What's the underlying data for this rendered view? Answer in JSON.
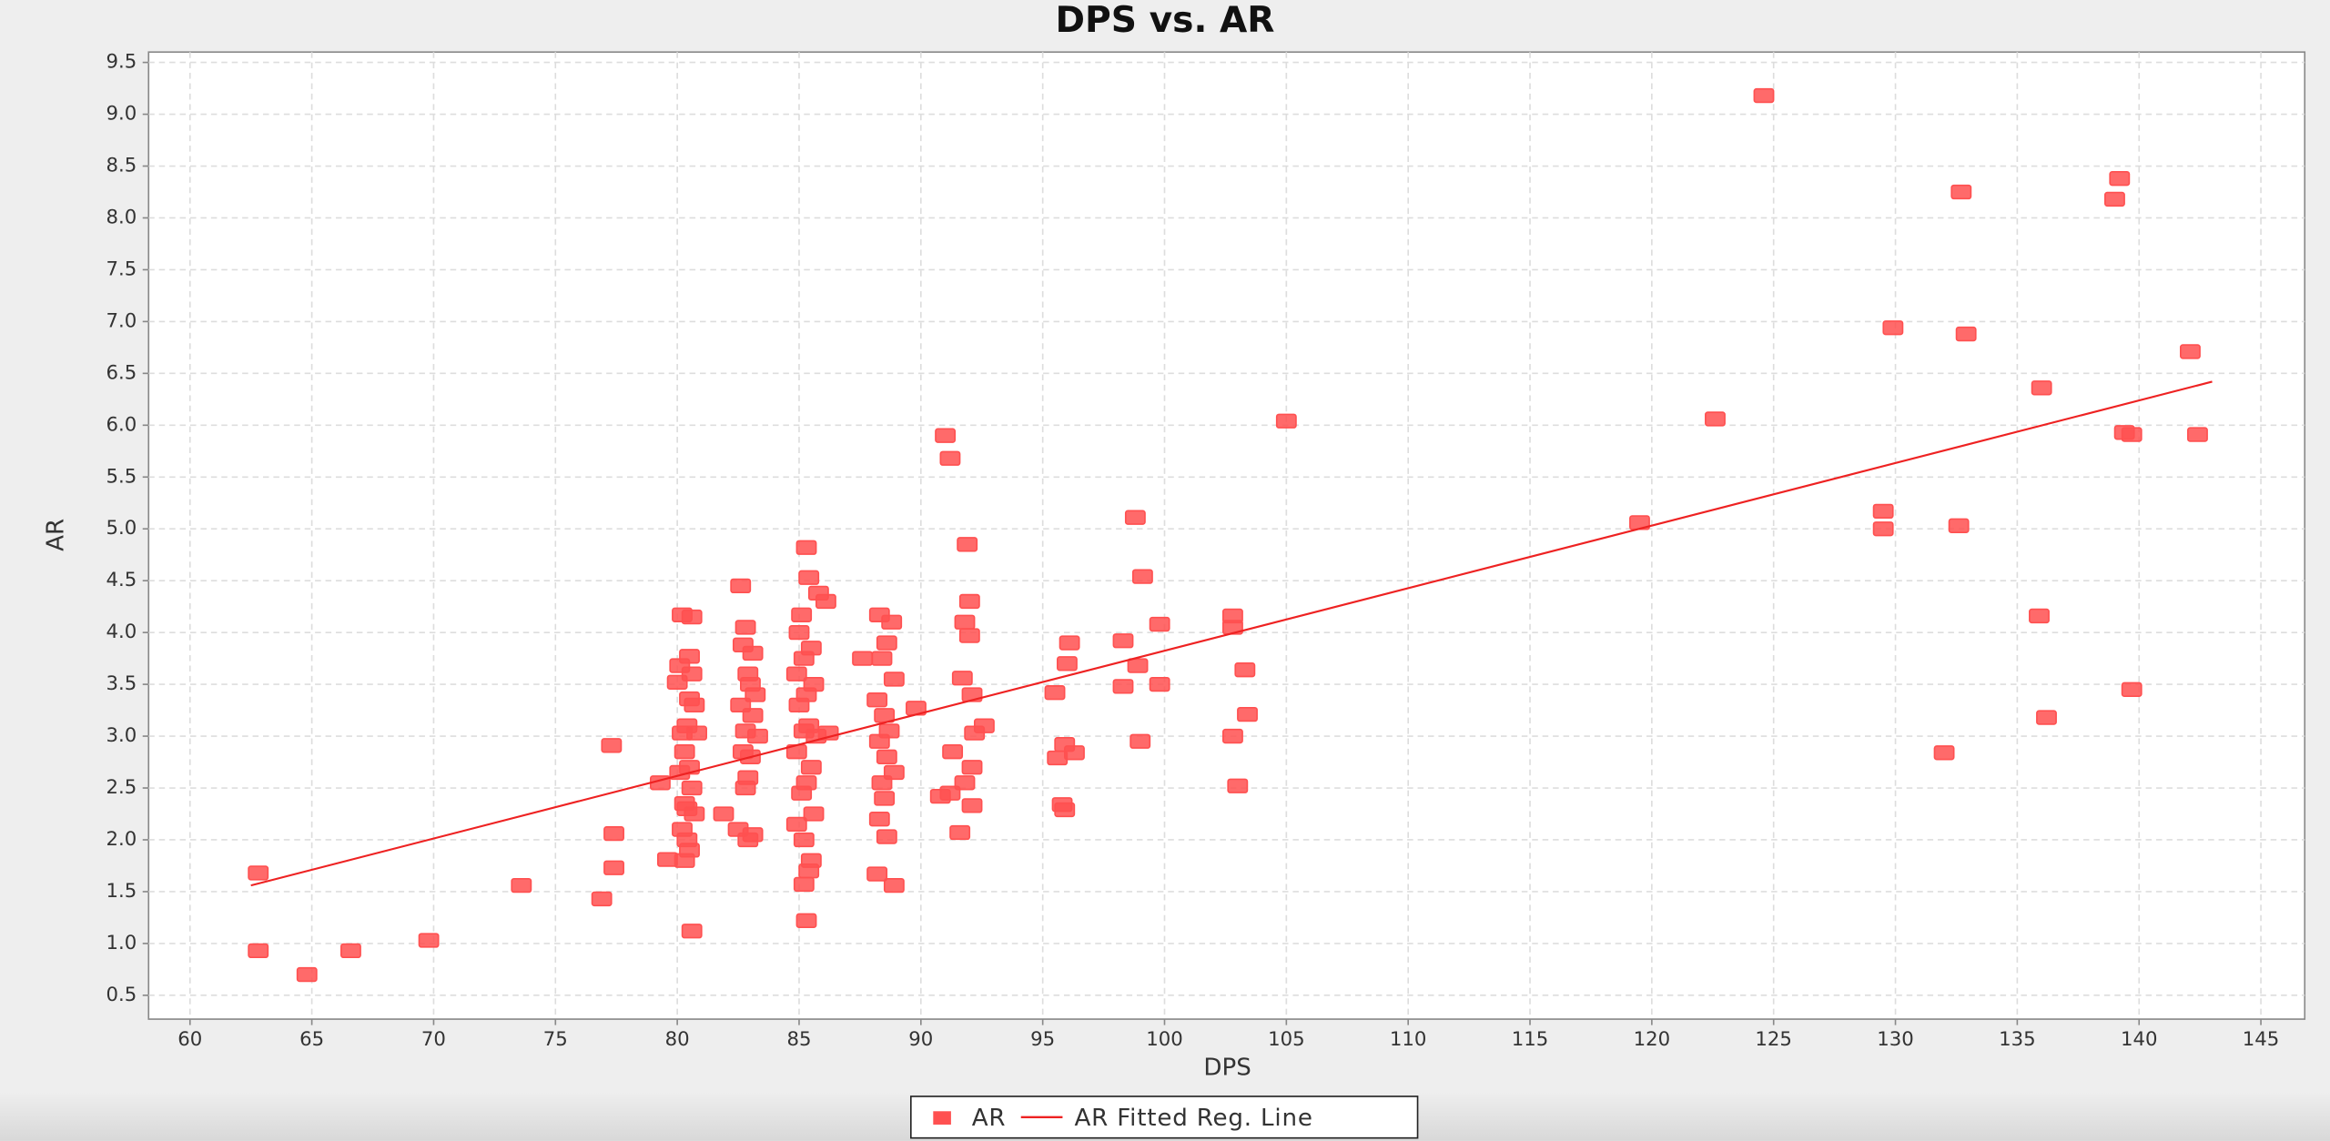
{
  "chart_data": {
    "type": "scatter",
    "title": "DPS vs. AR",
    "x_label": "DPS",
    "y_label": "AR",
    "xlim": [
      58.3,
      146.8
    ],
    "ylim": [
      0.27,
      9.6
    ],
    "xticks": [
      60,
      65,
      70,
      75,
      80,
      85,
      90,
      95,
      100,
      105,
      110,
      115,
      120,
      125,
      130,
      135,
      140,
      145
    ],
    "yticks": [
      0.5,
      {
        "value": 1,
        "label": "1.0"
      },
      1.5,
      {
        "value": 2,
        "label": "2.0"
      },
      2.5,
      {
        "value": 3,
        "label": "3.0"
      },
      3.5,
      {
        "value": 4,
        "label": "4.0"
      },
      4.5,
      {
        "value": 5,
        "label": "5.0"
      },
      5.5,
      {
        "value": 6,
        "label": "6.0"
      },
      6.5,
      {
        "value": 7,
        "label": "7.0"
      },
      7.5,
      {
        "value": 8,
        "label": "8.0"
      },
      8.5,
      {
        "value": 9,
        "label": "9.0"
      },
      9.5
    ],
    "grid": true,
    "legend": "bottom",
    "series": [
      {
        "name": "AR",
        "color": "#ff5050",
        "x": [
          62.8,
          62.8,
          64.8,
          66.6,
          69.8,
          73.6,
          76.9,
          77.3,
          77.4,
          77.4,
          79.3,
          79.6,
          80.2,
          80.6,
          80.5,
          80.1,
          80.6,
          80.0,
          80.5,
          80.7,
          80.4,
          80.2,
          80.8,
          80.3,
          80.5,
          80.1,
          80.6,
          80.3,
          80.4,
          80.7,
          80.2,
          80.4,
          80.5,
          80.3,
          80.6,
          82.6,
          82.8,
          82.7,
          83.1,
          82.9,
          83.0,
          83.2,
          82.6,
          83.1,
          82.8,
          83.3,
          82.7,
          83.0,
          82.9,
          82.8,
          81.9,
          82.5,
          83.1,
          82.9,
          85.3,
          85.4,
          85.8,
          86.1,
          85.1,
          85.0,
          85.5,
          85.2,
          84.9,
          85.6,
          85.3,
          85.0,
          85.4,
          85.2,
          85.7,
          84.9,
          85.5,
          85.3,
          85.1,
          85.6,
          84.9,
          85.2,
          85.5,
          85.4,
          85.2,
          85.3,
          87.6,
          86.2,
          88.3,
          88.8,
          88.6,
          88.4,
          88.9,
          88.2,
          88.5,
          88.7,
          88.3,
          88.6,
          88.9,
          88.4,
          88.5,
          88.3,
          88.6,
          88.2,
          88.9,
          89.8,
          91.0,
          91.2,
          91.9,
          92.0,
          91.8,
          92.0,
          91.7,
          92.1,
          92.6,
          92.2,
          91.3,
          92.1,
          91.8,
          91.2,
          90.8,
          92.1,
          91.6,
          95.5,
          95.6,
          95.9,
          96.3,
          95.8,
          95.9,
          96.1,
          96.0,
          98.3,
          98.3,
          98.9,
          98.8,
          99.1,
          99.0,
          99.8,
          99.8,
          102.8,
          102.8,
          102.8,
          103.0,
          103.3,
          103.4,
          105.0,
          119.5,
          122.6,
          124.6,
          129.5,
          129.5,
          129.9,
          132.0,
          132.7,
          132.6,
          132.9,
          135.9,
          136.0,
          136.2,
          139.0,
          139.2,
          139.4,
          139.7,
          139.7,
          142.1,
          142.4
        ],
        "values": [
          1.68,
          0.93,
          0.7,
          0.93,
          1.03,
          1.56,
          1.43,
          2.91,
          2.06,
          1.73,
          2.55,
          1.81,
          4.17,
          4.15,
          3.77,
          3.68,
          3.6,
          3.52,
          3.36,
          3.3,
          3.1,
          3.03,
          3.03,
          2.85,
          2.7,
          2.65,
          2.5,
          2.35,
          2.3,
          2.25,
          2.1,
          2.0,
          1.9,
          1.8,
          1.12,
          4.45,
          4.05,
          3.88,
          3.8,
          3.6,
          3.5,
          3.4,
          3.3,
          3.2,
          3.05,
          3.0,
          2.85,
          2.8,
          2.6,
          2.5,
          2.25,
          2.1,
          2.05,
          2.0,
          4.82,
          4.53,
          4.38,
          4.3,
          4.17,
          4.0,
          3.85,
          3.75,
          3.6,
          3.5,
          3.4,
          3.3,
          3.1,
          3.05,
          3.0,
          2.85,
          2.7,
          2.55,
          2.45,
          2.25,
          2.15,
          2.0,
          1.8,
          1.7,
          1.57,
          1.22,
          3.75,
          3.03,
          4.17,
          4.1,
          3.9,
          3.75,
          3.55,
          3.35,
          3.2,
          3.05,
          2.95,
          2.8,
          2.65,
          2.55,
          2.4,
          2.2,
          2.03,
          1.67,
          1.56,
          3.27,
          5.9,
          5.68,
          4.85,
          4.3,
          4.1,
          3.97,
          3.56,
          3.4,
          3.1,
          3.03,
          2.85,
          2.7,
          2.55,
          2.45,
          2.42,
          2.33,
          2.07,
          3.42,
          2.79,
          2.92,
          2.84,
          2.34,
          2.29,
          3.9,
          3.7,
          3.92,
          3.48,
          3.68,
          5.11,
          4.54,
          2.95,
          4.08,
          3.5,
          4.16,
          4.05,
          3.0,
          2.52,
          3.64,
          3.21,
          6.04,
          5.06,
          6.06,
          9.18,
          5.17,
          5.0,
          6.94,
          2.84,
          8.25,
          5.03,
          6.88,
          4.16,
          6.36,
          3.18,
          8.18,
          8.38,
          5.93,
          5.91,
          3.45,
          6.71,
          5.91
        ]
      },
      {
        "name": "AR Fitted Reg. Line",
        "color": "#ee2222",
        "x": [
          62.5,
          143
        ],
        "values": [
          1.56,
          6.42
        ]
      }
    ]
  }
}
